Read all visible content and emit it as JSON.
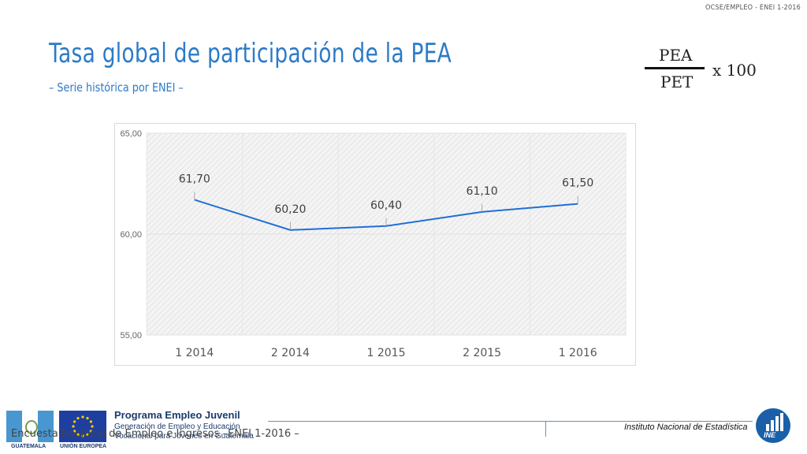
{
  "header": {
    "ref": "OCSE/EMPLEO - ENEI 1-2016"
  },
  "slide": {
    "title": "Tasa global de participación de la PEA",
    "subtitle": "– Serie histórica por ENEI –"
  },
  "formula": {
    "numerator": "PEA",
    "denominator": "PET",
    "multiplier": "x 100"
  },
  "chart_data": {
    "type": "line",
    "categories": [
      "1 2014",
      "2 2014",
      "1 2015",
      "2 2015",
      "1 2016"
    ],
    "series": [
      {
        "values": [
          61.7,
          60.2,
          60.4,
          61.1,
          61.5
        ],
        "labels": [
          "61,70",
          "60,20",
          "60,40",
          "61,10",
          "61,50"
        ]
      }
    ],
    "ylim": [
      55,
      65
    ],
    "yticks": [
      55,
      60,
      65
    ],
    "ytick_labels": [
      "55,00",
      "60,00",
      "65,00"
    ],
    "grid": true,
    "legend": "none",
    "line_color": "#1f6fd6"
  },
  "footer": {
    "text": "Encuesta Nacional de Empleo e Ingresos –ENEI 1-2016 –",
    "program_title": "Programa Empleo Juvenil",
    "program_sub1": "Generación de Empleo y Educación",
    "program_sub2": "Vocacional para Jóvenes en Guatemala",
    "flag_label": "GUATEMALA",
    "eu_label": "UNIÓN EUROPEA",
    "institute": "Instituto Nacional de Estadística",
    "logo_text": "INE"
  }
}
